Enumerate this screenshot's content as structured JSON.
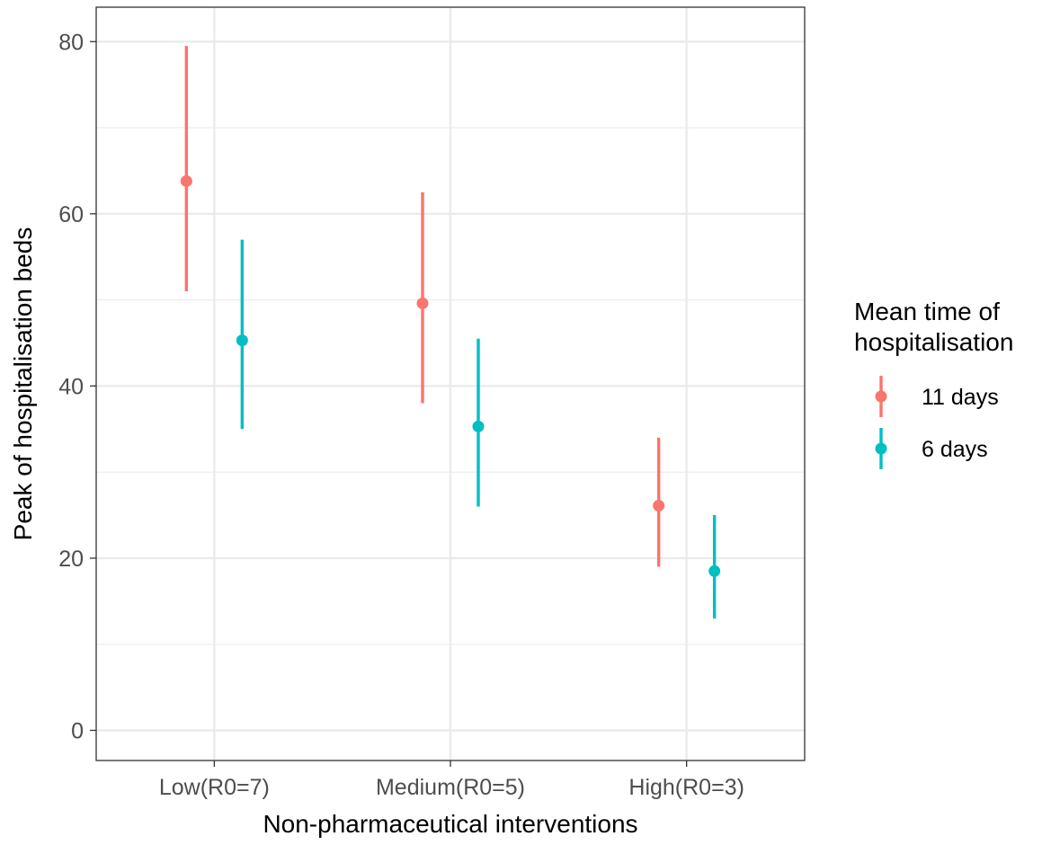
{
  "chart_data": {
    "type": "scatter",
    "subtype": "pointrange",
    "title": "",
    "xlabel": "Non-pharmaceutical interventions",
    "ylabel": "Peak of hospitalisation beds",
    "categories": [
      "Low(R0=7)",
      "Medium(R0=5)",
      "High(R0=3)"
    ],
    "y_ticks": [
      0,
      20,
      40,
      60,
      80
    ],
    "ylim": [
      -3.5,
      84
    ],
    "grid": true,
    "legend": {
      "title_lines": [
        "Mean time of",
        "hospitalisation"
      ],
      "position": "right"
    },
    "series": [
      {
        "name": "11 days",
        "color": "#F8766D",
        "points": [
          {
            "category": "Low(R0=7)",
            "y": 63.8,
            "lower": 51.0,
            "upper": 79.5
          },
          {
            "category": "Medium(R0=5)",
            "y": 49.6,
            "lower": 38.0,
            "upper": 62.5
          },
          {
            "category": "High(R0=3)",
            "y": 26.1,
            "lower": 19.0,
            "upper": 34.0
          }
        ]
      },
      {
        "name": "6 days",
        "color": "#00BFC4",
        "points": [
          {
            "category": "Low(R0=7)",
            "y": 45.3,
            "lower": 35.0,
            "upper": 57.0
          },
          {
            "category": "Medium(R0=5)",
            "y": 35.3,
            "lower": 26.0,
            "upper": 45.5
          },
          {
            "category": "High(R0=3)",
            "y": 18.5,
            "lower": 13.0,
            "upper": 25.0
          }
        ]
      }
    ]
  }
}
